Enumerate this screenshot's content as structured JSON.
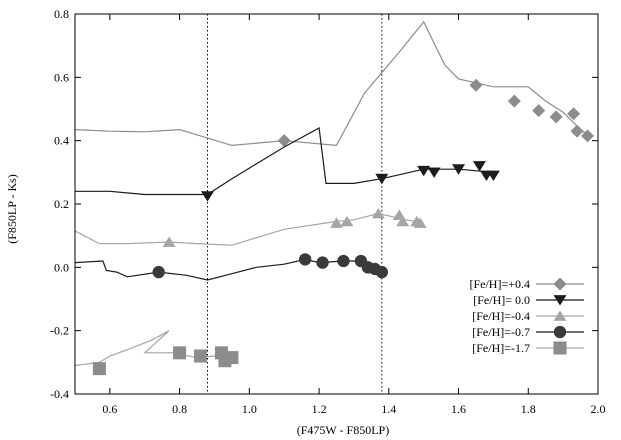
{
  "chart_data": {
    "type": "scatter",
    "xlabel": "(F475W - F850LP)",
    "ylabel": "(F850LP - Ks)",
    "xlim": [
      0.5,
      2.0
    ],
    "ylim": [
      -0.4,
      0.8
    ],
    "xticks": [
      "0.6",
      "0.8",
      "1.0",
      "1.2",
      "1.4",
      "1.6",
      "1.8",
      "2.0"
    ],
    "yticks": [
      "-0.4",
      "-0.2",
      "0.0",
      "0.2",
      "0.4",
      "0.6",
      "0.8"
    ],
    "grid": false,
    "legend_position": "bottom-right",
    "vertical_lines": [
      0.88,
      1.38
    ],
    "series": [
      {
        "name": "[Fe/H]=+0.4",
        "marker": "diamond",
        "color": "#8c8c8c",
        "line_color": "#8c8c8c",
        "line": [
          [
            0.5,
            0.435
          ],
          [
            0.6,
            0.43
          ],
          [
            0.7,
            0.428
          ],
          [
            0.8,
            0.435
          ],
          [
            0.95,
            0.385
          ],
          [
            1.1,
            0.4
          ],
          [
            1.25,
            0.385
          ],
          [
            1.33,
            0.55
          ],
          [
            1.43,
            0.68
          ],
          [
            1.5,
            0.775
          ],
          [
            1.56,
            0.64
          ],
          [
            1.6,
            0.595
          ],
          [
            1.7,
            0.57
          ],
          [
            1.8,
            0.57
          ],
          [
            1.85,
            0.525
          ],
          [
            1.9,
            0.49
          ],
          [
            1.95,
            0.435
          ],
          [
            1.98,
            0.41
          ]
        ],
        "points": [
          [
            1.1,
            0.4
          ],
          [
            1.65,
            0.575
          ],
          [
            1.76,
            0.525
          ],
          [
            1.83,
            0.495
          ],
          [
            1.88,
            0.475
          ],
          [
            1.93,
            0.485
          ],
          [
            1.94,
            0.43
          ],
          [
            1.97,
            0.415
          ]
        ]
      },
      {
        "name": "[Fe/H]= 0.0",
        "marker": "triangle-down",
        "color": "#1c1c1c",
        "line_color": "#1c1c1c",
        "line": [
          [
            0.5,
            0.24
          ],
          [
            0.6,
            0.24
          ],
          [
            0.7,
            0.23
          ],
          [
            0.8,
            0.23
          ],
          [
            0.88,
            0.23
          ],
          [
            0.95,
            0.28
          ],
          [
            1.1,
            0.38
          ],
          [
            1.2,
            0.44
          ],
          [
            1.22,
            0.265
          ],
          [
            1.3,
            0.265
          ],
          [
            1.38,
            0.28
          ],
          [
            1.5,
            0.31
          ],
          [
            1.6,
            0.31
          ],
          [
            1.7,
            0.3
          ]
        ],
        "points": [
          [
            0.88,
            0.225
          ],
          [
            1.38,
            0.28
          ],
          [
            1.5,
            0.305
          ],
          [
            1.53,
            0.3
          ],
          [
            1.6,
            0.31
          ],
          [
            1.66,
            0.32
          ],
          [
            1.68,
            0.29
          ],
          [
            1.7,
            0.29
          ]
        ]
      },
      {
        "name": "[Fe/H]=-0.4",
        "marker": "triangle-up",
        "color": "#a6a6a6",
        "line_color": "#a6a6a6",
        "line": [
          [
            0.5,
            0.115
          ],
          [
            0.57,
            0.075
          ],
          [
            0.65,
            0.075
          ],
          [
            0.77,
            0.08
          ],
          [
            0.85,
            0.075
          ],
          [
            0.95,
            0.07
          ],
          [
            1.1,
            0.12
          ],
          [
            1.25,
            0.145
          ],
          [
            1.3,
            0.15
          ],
          [
            1.37,
            0.17
          ],
          [
            1.45,
            0.15
          ],
          [
            1.5,
            0.14
          ]
        ],
        "points": [
          [
            0.77,
            0.08
          ],
          [
            1.25,
            0.14
          ],
          [
            1.28,
            0.145
          ],
          [
            1.37,
            0.17
          ],
          [
            1.43,
            0.165
          ],
          [
            1.44,
            0.145
          ],
          [
            1.48,
            0.145
          ],
          [
            1.49,
            0.14
          ]
        ]
      },
      {
        "name": "[Fe/H]=-0.7",
        "marker": "circle",
        "color": "#3a3a3a",
        "line_color": "#1c1c1c",
        "line": [
          [
            0.5,
            0.015
          ],
          [
            0.58,
            0.02
          ],
          [
            0.59,
            -0.01
          ],
          [
            0.62,
            -0.015
          ],
          [
            0.65,
            -0.03
          ],
          [
            0.74,
            -0.015
          ],
          [
            0.82,
            -0.025
          ],
          [
            0.88,
            -0.04
          ],
          [
            0.95,
            -0.02
          ],
          [
            1.02,
            0.0
          ],
          [
            1.1,
            0.01
          ],
          [
            1.16,
            0.025
          ],
          [
            1.2,
            0.015
          ],
          [
            1.27,
            0.02
          ],
          [
            1.32,
            0.02
          ],
          [
            1.36,
            0.0
          ],
          [
            1.38,
            -0.015
          ]
        ],
        "points": [
          [
            0.74,
            -0.015
          ],
          [
            1.16,
            0.025
          ],
          [
            1.21,
            0.015
          ],
          [
            1.27,
            0.02
          ],
          [
            1.32,
            0.02
          ],
          [
            1.34,
            0.0
          ],
          [
            1.36,
            -0.005
          ],
          [
            1.38,
            -0.015
          ]
        ]
      },
      {
        "name": "[Fe/H]=-1.7",
        "marker": "square",
        "color": "#8c8c8c",
        "line_color": "#a6a6a6",
        "line": [
          [
            0.5,
            -0.31
          ],
          [
            0.57,
            -0.3
          ],
          [
            0.6,
            -0.28
          ],
          [
            0.65,
            -0.26
          ],
          [
            0.72,
            -0.23
          ],
          [
            0.77,
            -0.2
          ],
          [
            0.7,
            -0.27
          ],
          [
            0.78,
            -0.27
          ],
          [
            0.85,
            -0.285
          ],
          [
            0.9,
            -0.28
          ],
          [
            0.95,
            -0.285
          ]
        ],
        "points": [
          [
            0.57,
            -0.32
          ],
          [
            0.8,
            -0.27
          ],
          [
            0.86,
            -0.28
          ],
          [
            0.92,
            -0.27
          ],
          [
            0.93,
            -0.295
          ],
          [
            0.95,
            -0.285
          ]
        ]
      }
    ]
  }
}
